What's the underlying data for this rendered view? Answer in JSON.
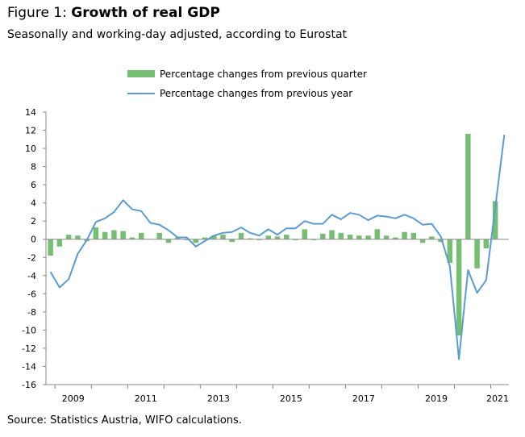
{
  "header": {
    "title_prefix": "Figure 1: ",
    "title_main": "Growth of real GDP",
    "subtitle": "Seasonally and working-day adjusted, according to Eurostat"
  },
  "footer": {
    "source": "Source: Statistics Austria, WIFO calculations."
  },
  "colors": {
    "bars": "#76bf72",
    "line": "#5b9bd5",
    "axis": "#888888"
  },
  "chart_data": {
    "type": "bar",
    "title": "",
    "xlabel": "",
    "ylabel": "",
    "ylim": [
      -16,
      14
    ],
    "yticks": [
      14,
      12,
      10,
      8,
      6,
      4,
      2,
      0,
      -2,
      -4,
      -6,
      -8,
      -10,
      -12,
      -14,
      -16
    ],
    "x_tick_labels": [
      "2009",
      "2011",
      "2013",
      "2015",
      "2017",
      "2019",
      "2021"
    ],
    "legend": {
      "placement": "top-center"
    },
    "categories": [
      "2008Q4",
      "2009Q1",
      "2009Q2",
      "2009Q3",
      "2009Q4",
      "2010Q1",
      "2010Q2",
      "2010Q3",
      "2010Q4",
      "2011Q1",
      "2011Q2",
      "2011Q3",
      "2011Q4",
      "2012Q1",
      "2012Q2",
      "2012Q3",
      "2012Q4",
      "2013Q1",
      "2013Q2",
      "2013Q3",
      "2013Q4",
      "2014Q1",
      "2014Q2",
      "2014Q3",
      "2014Q4",
      "2015Q1",
      "2015Q2",
      "2015Q3",
      "2015Q4",
      "2016Q1",
      "2016Q2",
      "2016Q3",
      "2016Q4",
      "2017Q1",
      "2017Q2",
      "2017Q3",
      "2017Q4",
      "2018Q1",
      "2018Q2",
      "2018Q3",
      "2018Q4",
      "2019Q1",
      "2019Q2",
      "2019Q3",
      "2019Q4",
      "2020Q1",
      "2020Q2",
      "2020Q3",
      "2020Q4",
      "2021Q1",
      "2021Q2"
    ],
    "series": [
      {
        "name": "Percentage changes from previous quarter",
        "kind": "bar",
        "values": [
          -1.8,
          -0.8,
          0.5,
          0.4,
          -0.2,
          1.3,
          0.8,
          1.0,
          0.9,
          0.2,
          0.7,
          0.0,
          0.7,
          -0.4,
          0.2,
          -0.1,
          -0.4,
          0.2,
          0.4,
          0.5,
          -0.3,
          0.7,
          0.1,
          -0.1,
          0.4,
          0.3,
          0.5,
          -0.1,
          1.1,
          -0.1,
          0.6,
          1.0,
          0.7,
          0.5,
          0.4,
          0.4,
          1.1,
          0.4,
          0.2,
          0.8,
          0.7,
          -0.4,
          0.3,
          -0.3,
          -2.6,
          -10.6,
          11.6,
          -3.2,
          -1.0,
          4.2,
          null
        ]
      },
      {
        "name": "Percentage changes from previous year",
        "kind": "line",
        "values": [
          -3.6,
          -5.3,
          -4.4,
          -1.6,
          -0.1,
          1.9,
          2.3,
          3.0,
          4.3,
          3.3,
          3.1,
          1.8,
          1.6,
          1.0,
          0.2,
          0.2,
          -0.8,
          -0.2,
          0.4,
          0.7,
          0.8,
          1.3,
          0.7,
          0.4,
          1.1,
          0.5,
          1.2,
          1.2,
          2.0,
          1.7,
          1.7,
          2.7,
          2.2,
          2.9,
          2.7,
          2.1,
          2.6,
          2.5,
          2.3,
          2.7,
          2.3,
          1.6,
          1.7,
          0.3,
          -3.0,
          -13.2,
          -3.4,
          -5.9,
          -4.5,
          null,
          11.5
        ]
      }
    ]
  }
}
